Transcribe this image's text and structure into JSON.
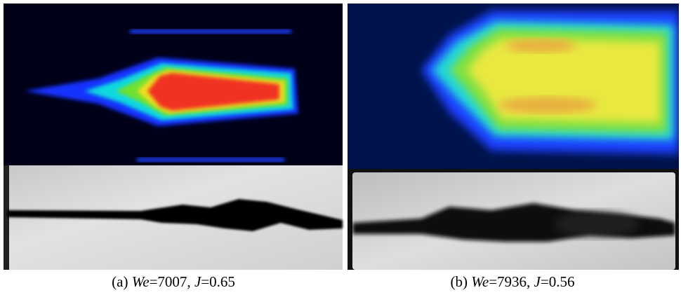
{
  "panels": [
    {
      "prefix": "(a) ",
      "we": "We",
      "we_value": "=7007, ",
      "j": "J",
      "j_value": "=0.65"
    },
    {
      "prefix": "(b) ",
      "we": "We",
      "we_value": "=7936, ",
      "j": "J",
      "j_value": "=0.56"
    }
  ]
}
